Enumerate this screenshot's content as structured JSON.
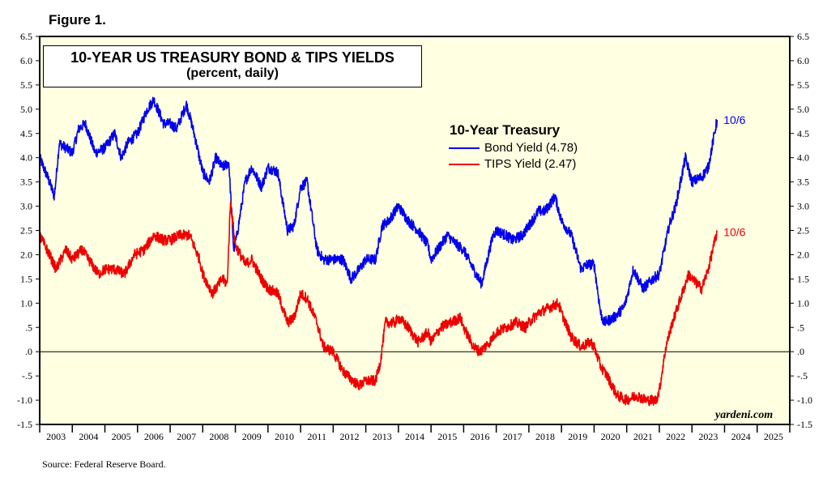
{
  "figure_label": "Figure 1.",
  "source": "Source: Federal Reserve Board.",
  "watermark": "yardeni.com",
  "colors": {
    "plot_bg": "#ffffe1",
    "bond": "#0000ee",
    "tips": "#ee0000",
    "zero_line": "#000000"
  },
  "chart_data": {
    "type": "line",
    "title": "10-YEAR US TREASURY BOND & TIPS YIELDS",
    "subtitle": "(percent, daily)",
    "legend_title": "10-Year Treasury",
    "legend_placement": "upper-middle",
    "ylim": [
      -1.5,
      6.5
    ],
    "xlim": [
      2003.0,
      2026.0
    ],
    "y_ticks": [
      "6.5",
      "6.0",
      "5.5",
      "5.0",
      "4.5",
      "4.0",
      "3.5",
      "3.0",
      "2.5",
      "2.0",
      "1.5",
      "1.0",
      ".5",
      ".0",
      "-.5",
      "-1.0",
      "-1.5"
    ],
    "y_tick_values": [
      6.5,
      6.0,
      5.5,
      5.0,
      4.5,
      4.0,
      3.5,
      3.0,
      2.5,
      2.0,
      1.5,
      1.0,
      0.5,
      0.0,
      -0.5,
      -1.0,
      -1.5
    ],
    "x_tick_labels": [
      "2003",
      "2004",
      "2005",
      "2006",
      "2007",
      "2008",
      "2009",
      "2010",
      "2011",
      "2012",
      "2013",
      "2014",
      "2015",
      "2016",
      "2017",
      "2018",
      "2019",
      "2020",
      "2021",
      "2022",
      "2023",
      "2024",
      "2025"
    ],
    "end_label": "10/6",
    "series": [
      {
        "name": "Bond Yield (4.78)",
        "color": "#0000ee",
        "x": [
          2003.0,
          2003.3,
          2003.45,
          2003.6,
          2003.8,
          2004.0,
          2004.2,
          2004.4,
          2004.7,
          2005.0,
          2005.3,
          2005.5,
          2005.7,
          2006.0,
          2006.3,
          2006.5,
          2006.8,
          2007.0,
          2007.2,
          2007.5,
          2007.7,
          2008.0,
          2008.2,
          2008.4,
          2008.6,
          2008.8,
          2008.95,
          2009.05,
          2009.3,
          2009.5,
          2009.8,
          2010.0,
          2010.3,
          2010.6,
          2010.8,
          2011.0,
          2011.2,
          2011.5,
          2011.7,
          2012.0,
          2012.3,
          2012.55,
          2012.8,
          2013.0,
          2013.3,
          2013.5,
          2013.7,
          2014.0,
          2014.3,
          2014.6,
          2014.9,
          2015.0,
          2015.3,
          2015.5,
          2015.8,
          2016.0,
          2016.3,
          2016.55,
          2016.9,
          2017.0,
          2017.3,
          2017.5,
          2017.8,
          2018.0,
          2018.3,
          2018.5,
          2018.8,
          2019.0,
          2019.3,
          2019.6,
          2019.8,
          2020.0,
          2020.2,
          2020.3,
          2020.6,
          2020.9,
          2021.0,
          2021.2,
          2021.5,
          2021.8,
          2022.0,
          2022.3,
          2022.5,
          2022.8,
          2023.0,
          2023.3,
          2023.5,
          2023.77
        ],
        "y": [
          4.0,
          3.5,
          3.2,
          4.3,
          4.2,
          4.1,
          4.6,
          4.7,
          4.1,
          4.2,
          4.5,
          4.0,
          4.3,
          4.5,
          5.0,
          5.2,
          4.7,
          4.7,
          4.6,
          5.1,
          4.6,
          3.7,
          3.5,
          4.0,
          3.8,
          3.9,
          2.1,
          2.4,
          3.5,
          3.8,
          3.4,
          3.8,
          3.7,
          2.5,
          2.6,
          3.4,
          3.5,
          2.1,
          1.9,
          1.9,
          1.9,
          1.5,
          1.7,
          1.9,
          1.9,
          2.6,
          2.7,
          3.0,
          2.7,
          2.5,
          2.2,
          1.9,
          2.2,
          2.4,
          2.2,
          2.1,
          1.7,
          1.4,
          2.4,
          2.5,
          2.4,
          2.3,
          2.4,
          2.6,
          2.9,
          2.9,
          3.2,
          2.7,
          2.4,
          1.7,
          1.8,
          1.8,
          0.8,
          0.6,
          0.7,
          0.9,
          1.1,
          1.7,
          1.3,
          1.5,
          1.6,
          2.6,
          3.0,
          4.0,
          3.5,
          3.6,
          3.8,
          4.78
        ]
      },
      {
        "name": "TIPS Yield (2.47)",
        "color": "#ee0000",
        "x": [
          2003.0,
          2003.3,
          2003.5,
          2003.8,
          2004.0,
          2004.3,
          2004.5,
          2004.8,
          2005.0,
          2005.3,
          2005.6,
          2005.9,
          2006.2,
          2006.5,
          2006.8,
          2007.0,
          2007.3,
          2007.6,
          2007.9,
          2008.0,
          2008.3,
          2008.6,
          2008.75,
          2008.85,
          2009.0,
          2009.3,
          2009.5,
          2009.8,
          2010.0,
          2010.3,
          2010.6,
          2010.8,
          2011.0,
          2011.2,
          2011.5,
          2011.7,
          2012.0,
          2012.3,
          2012.6,
          2012.8,
          2013.0,
          2013.3,
          2013.45,
          2013.6,
          2013.9,
          2014.0,
          2014.3,
          2014.6,
          2014.9,
          2015.0,
          2015.3,
          2015.6,
          2015.9,
          2016.0,
          2016.3,
          2016.5,
          2016.8,
          2017.0,
          2017.3,
          2017.6,
          2017.9,
          2018.0,
          2018.3,
          2018.6,
          2018.9,
          2019.0,
          2019.3,
          2019.6,
          2019.9,
          2020.0,
          2020.1,
          2020.2,
          2020.4,
          2020.7,
          2021.0,
          2021.3,
          2021.6,
          2021.9,
          2022.0,
          2022.2,
          2022.4,
          2022.7,
          2022.9,
          2023.0,
          2023.3,
          2023.5,
          2023.77
        ],
        "y": [
          2.4,
          2.0,
          1.7,
          2.1,
          1.9,
          2.1,
          1.9,
          1.6,
          1.7,
          1.7,
          1.6,
          2.0,
          2.1,
          2.4,
          2.3,
          2.3,
          2.4,
          2.4,
          1.9,
          1.6,
          1.2,
          1.5,
          1.4,
          3.1,
          2.2,
          1.8,
          1.9,
          1.5,
          1.3,
          1.2,
          0.6,
          0.7,
          1.2,
          1.1,
          0.6,
          0.1,
          0.0,
          -0.4,
          -0.6,
          -0.7,
          -0.6,
          -0.6,
          -0.2,
          0.6,
          0.6,
          0.7,
          0.5,
          0.2,
          0.4,
          0.2,
          0.5,
          0.6,
          0.7,
          0.5,
          0.1,
          0.0,
          0.2,
          0.4,
          0.5,
          0.6,
          0.5,
          0.6,
          0.8,
          0.9,
          1.0,
          0.8,
          0.3,
          0.1,
          0.2,
          0.1,
          -0.1,
          -0.3,
          -0.5,
          -0.9,
          -1.0,
          -0.9,
          -1.0,
          -1.0,
          -0.8,
          0.1,
          0.6,
          1.2,
          1.6,
          1.5,
          1.3,
          1.7,
          2.47
        ]
      }
    ]
  }
}
